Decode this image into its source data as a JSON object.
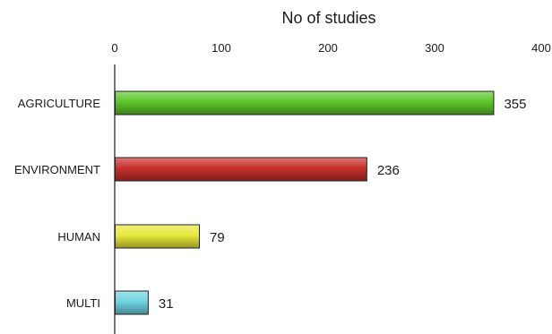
{
  "chart_data": {
    "type": "bar",
    "orientation": "horizontal",
    "xlabel": "No of studies",
    "xlabel_position": "top",
    "x_axis_position": "top",
    "xlim": [
      0,
      400
    ],
    "xticks": [
      0,
      100,
      200,
      300,
      400
    ],
    "categories": [
      "AGRICULTURE",
      "ENVIRONMENT",
      "HUMAN",
      "MULTI"
    ],
    "values": [
      355,
      236,
      79,
      31
    ],
    "bar_colors": [
      "#5cc62a",
      "#c8302c",
      "#e8e83a",
      "#6fd3e0"
    ],
    "grid": false,
    "legend": "none"
  }
}
